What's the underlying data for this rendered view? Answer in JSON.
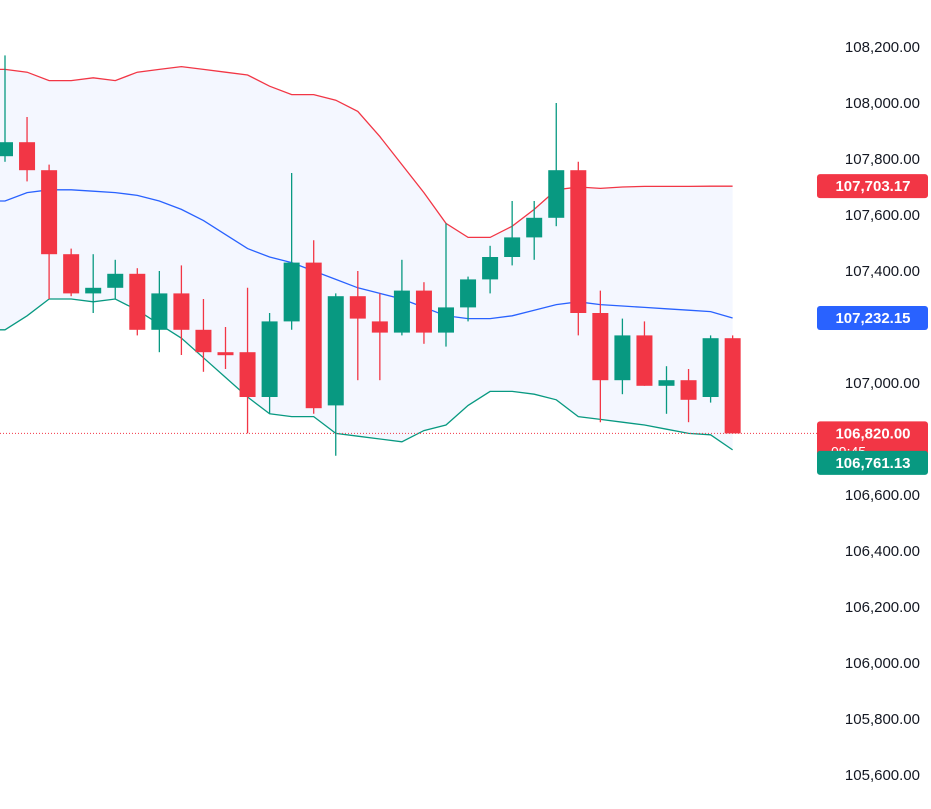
{
  "colors": {
    "up": "#089981",
    "down": "#f23645",
    "band_upper": "#f23645",
    "band_basis": "#2962ff",
    "band_lower": "#089981",
    "band_fill": "#2962ff",
    "axis_text": "#131722",
    "label_text": "#ffffff",
    "price_line": "#f23645"
  },
  "chart_data": {
    "type": "candlestick",
    "yaxis": {
      "position": "right",
      "range": [
        105550,
        108330
      ],
      "ticks": [
        108200,
        108000,
        107800,
        107600,
        107400,
        107000,
        106600,
        106400,
        106200,
        106000,
        105800,
        105600
      ],
      "tick_labels": [
        "108,200.00",
        "108,000.00",
        "107,800.00",
        "107,600.00",
        "107,400.00",
        "107,000.00",
        "106,600.00",
        "106,400.00",
        "106,200.00",
        "106,000.00",
        "105,800.00",
        "105,600.00"
      ]
    },
    "candles": [
      {
        "o": 107810,
        "h": 108170,
        "l": 107790,
        "c": 107860
      },
      {
        "o": 107860,
        "h": 107950,
        "l": 107720,
        "c": 107760
      },
      {
        "o": 107760,
        "h": 107780,
        "l": 107300,
        "c": 107460
      },
      {
        "o": 107460,
        "h": 107480,
        "l": 107310,
        "c": 107320
      },
      {
        "o": 107320,
        "h": 107460,
        "l": 107250,
        "c": 107340
      },
      {
        "o": 107340,
        "h": 107440,
        "l": 107300,
        "c": 107390
      },
      {
        "o": 107390,
        "h": 107410,
        "l": 107170,
        "c": 107190
      },
      {
        "o": 107190,
        "h": 107400,
        "l": 107110,
        "c": 107320
      },
      {
        "o": 107320,
        "h": 107420,
        "l": 107100,
        "c": 107190
      },
      {
        "o": 107190,
        "h": 107300,
        "l": 107040,
        "c": 107110
      },
      {
        "o": 107110,
        "h": 107200,
        "l": 107050,
        "c": 107100
      },
      {
        "o": 107110,
        "h": 107340,
        "l": 106820,
        "c": 106950
      },
      {
        "o": 106950,
        "h": 107250,
        "l": 106890,
        "c": 107220
      },
      {
        "o": 107220,
        "h": 107750,
        "l": 107190,
        "c": 107430
      },
      {
        "o": 107430,
        "h": 107510,
        "l": 106890,
        "c": 106910
      },
      {
        "o": 106920,
        "h": 107320,
        "l": 106740,
        "c": 107310
      },
      {
        "o": 107310,
        "h": 107400,
        "l": 107010,
        "c": 107230
      },
      {
        "o": 107220,
        "h": 107320,
        "l": 107010,
        "c": 107180
      },
      {
        "o": 107180,
        "h": 107440,
        "l": 107170,
        "c": 107330
      },
      {
        "o": 107330,
        "h": 107360,
        "l": 107140,
        "c": 107180
      },
      {
        "o": 107180,
        "h": 107570,
        "l": 107130,
        "c": 107270
      },
      {
        "o": 107270,
        "h": 107380,
        "l": 107220,
        "c": 107370
      },
      {
        "o": 107370,
        "h": 107490,
        "l": 107320,
        "c": 107450
      },
      {
        "o": 107450,
        "h": 107650,
        "l": 107420,
        "c": 107520
      },
      {
        "o": 107520,
        "h": 107650,
        "l": 107440,
        "c": 107590
      },
      {
        "o": 107590,
        "h": 108000,
        "l": 107560,
        "c": 107760
      },
      {
        "o": 107760,
        "h": 107790,
        "l": 107170,
        "c": 107250
      },
      {
        "o": 107250,
        "h": 107330,
        "l": 106860,
        "c": 107010
      },
      {
        "o": 107010,
        "h": 107230,
        "l": 106960,
        "c": 107170
      },
      {
        "o": 107170,
        "h": 107220,
        "l": 106990,
        "c": 106990
      },
      {
        "o": 106990,
        "h": 107060,
        "l": 106890,
        "c": 107010
      },
      {
        "o": 107010,
        "h": 107050,
        "l": 106860,
        "c": 106940
      },
      {
        "o": 106950,
        "h": 107170,
        "l": 106930,
        "c": 107160
      },
      {
        "o": 107160,
        "h": 107170,
        "l": 106820,
        "c": 106820
      }
    ],
    "bollinger": {
      "upper": [
        108120,
        108110,
        108080,
        108080,
        108090,
        108080,
        108110,
        108120,
        108130,
        108120,
        108110,
        108100,
        108060,
        108030,
        108030,
        108010,
        107970,
        107880,
        107780,
        107680,
        107570,
        107520,
        107520,
        107560,
        107620,
        107690,
        107700,
        107695,
        107700,
        107702,
        107702,
        107702,
        107703,
        107703
      ],
      "basis": [
        107650,
        107680,
        107690,
        107690,
        107685,
        107680,
        107670,
        107650,
        107620,
        107580,
        107530,
        107480,
        107450,
        107430,
        107400,
        107370,
        107340,
        107320,
        107300,
        107270,
        107240,
        107230,
        107230,
        107240,
        107260,
        107280,
        107290,
        107280,
        107275,
        107270,
        107265,
        107260,
        107255,
        107232
      ],
      "lower": [
        107190,
        107240,
        107300,
        107300,
        107290,
        107300,
        107260,
        107210,
        107160,
        107090,
        107020,
        106950,
        106890,
        106880,
        106880,
        106820,
        106810,
        106800,
        106790,
        106830,
        106850,
        106920,
        106970,
        106970,
        106960,
        106940,
        106880,
        106870,
        106860,
        106850,
        106835,
        106820,
        106815,
        106761
      ]
    },
    "labels": {
      "upper_value": "107,703.17",
      "basis_value": "107,232.15",
      "current_price": "106,820.00",
      "countdown": "09:45",
      "lower_value": "106,761.13"
    },
    "current_price_value": 106820,
    "upper_label_value": 107703.17,
    "basis_label_value": 107232.15,
    "lower_label_value": 106761.13
  }
}
